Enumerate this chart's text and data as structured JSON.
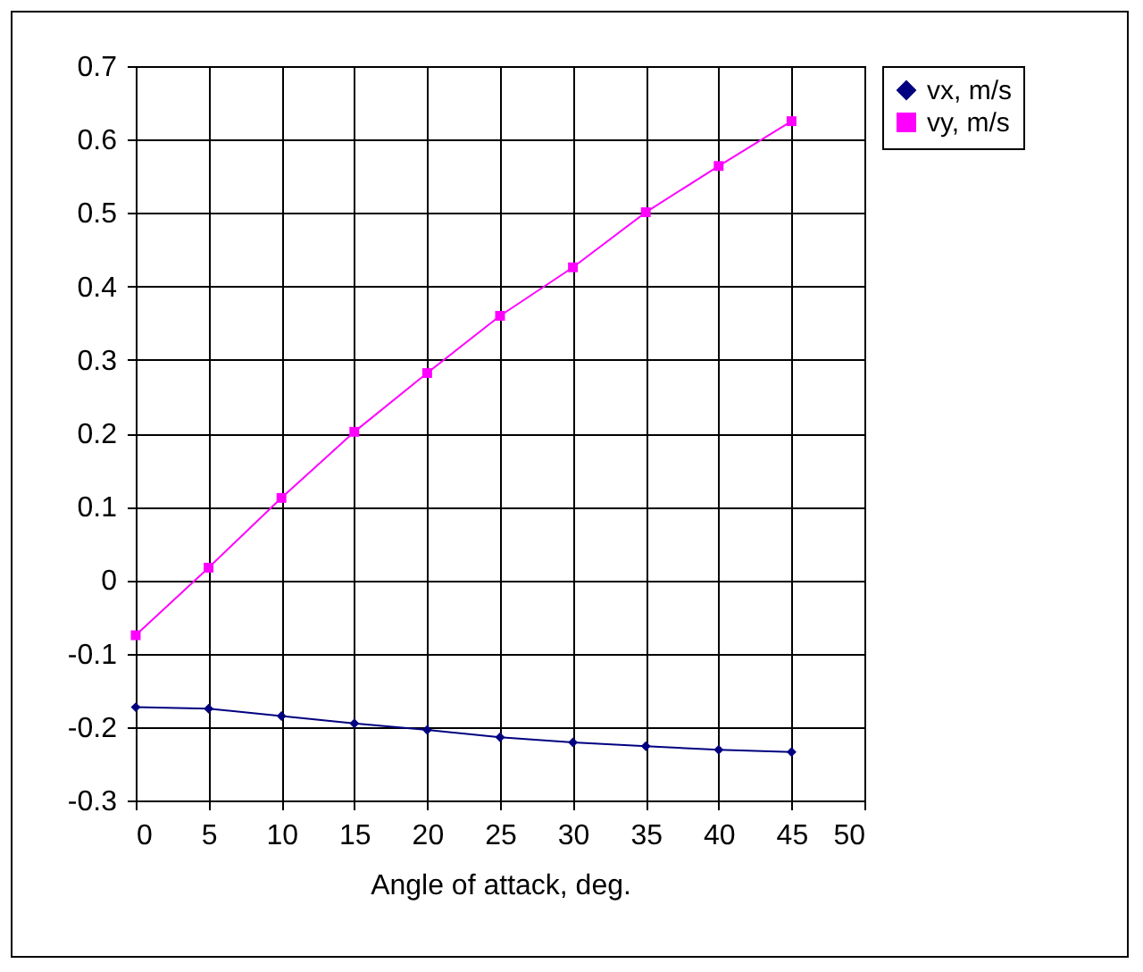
{
  "chart_data": {
    "type": "line",
    "xlabel": "Angle of attack, deg.",
    "x": [
      0,
      5,
      10,
      15,
      20,
      25,
      30,
      35,
      40,
      45
    ],
    "series": [
      {
        "name": "vx, m/s",
        "color": "#000080",
        "marker": "diamond",
        "values": [
          -0.173,
          -0.175,
          -0.185,
          -0.195,
          -0.204,
          -0.214,
          -0.221,
          -0.226,
          -0.231,
          -0.234
        ]
      },
      {
        "name": "vy, m/s",
        "color": "#ff00ff",
        "marker": "square",
        "values": [
          -0.075,
          0.017,
          0.112,
          0.202,
          0.282,
          0.36,
          0.426,
          0.501,
          0.564,
          0.625
        ]
      }
    ],
    "xlim": [
      0,
      50
    ],
    "xticks": [
      0,
      5,
      10,
      15,
      20,
      25,
      30,
      35,
      40,
      45,
      50
    ],
    "ylim": [
      -0.3,
      0.7
    ],
    "yticks": [
      -0.3,
      -0.2,
      -0.1,
      0,
      0.1,
      0.2,
      0.3,
      0.4,
      0.5,
      0.6,
      0.7
    ],
    "grid": true,
    "legend": "right"
  }
}
